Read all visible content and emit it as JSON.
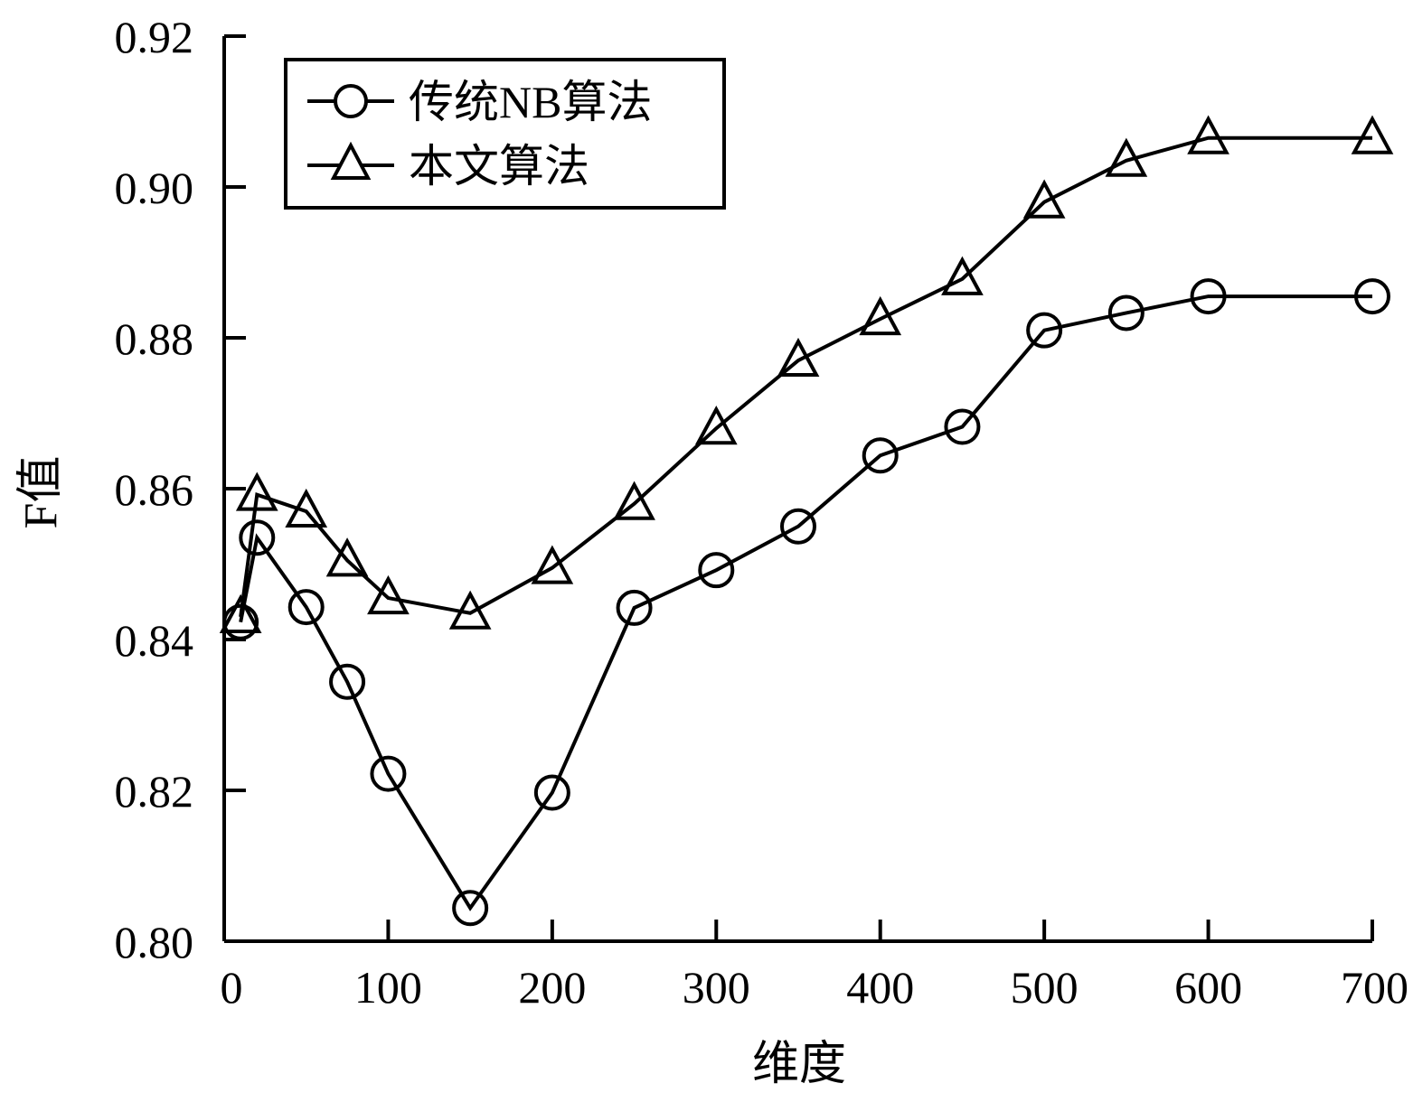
{
  "chart_data": {
    "type": "line",
    "title": "",
    "xlabel": "维度",
    "ylabel": "F值",
    "xlim": [
      0,
      700
    ],
    "ylim": [
      0.8,
      0.92
    ],
    "xticks": [
      0,
      100,
      200,
      300,
      400,
      500,
      600,
      700
    ],
    "yticks": [
      0.8,
      0.82,
      0.84,
      0.86,
      0.88,
      0.9,
      0.92
    ],
    "ytick_labels": [
      "0.80",
      "0.82",
      "0.84",
      "0.86",
      "0.88",
      "0.90",
      "0.92"
    ],
    "grid": false,
    "legend_position": "top-left",
    "series": [
      {
        "name": "传统NB算法",
        "marker": "circle",
        "x": [
          10,
          20,
          50,
          75,
          100,
          150,
          200,
          250,
          300,
          350,
          400,
          450,
          500,
          550,
          600,
          700
        ],
        "y": [
          0.8423,
          0.8535,
          0.8443,
          0.8344,
          0.8222,
          0.8044,
          0.8197,
          0.8442,
          0.8492,
          0.855,
          0.8644,
          0.8682,
          0.881,
          0.8833,
          0.8855,
          0.8855
        ]
      },
      {
        "name": "本文算法",
        "marker": "triangle",
        "x": [
          10,
          20,
          50,
          75,
          100,
          150,
          200,
          250,
          300,
          350,
          400,
          450,
          500,
          550,
          600,
          700
        ],
        "y": [
          0.843,
          0.8592,
          0.857,
          0.8505,
          0.8455,
          0.8435,
          0.8495,
          0.858,
          0.868,
          0.877,
          0.8825,
          0.8878,
          0.898,
          0.9035,
          0.9065,
          0.9065
        ]
      }
    ]
  }
}
